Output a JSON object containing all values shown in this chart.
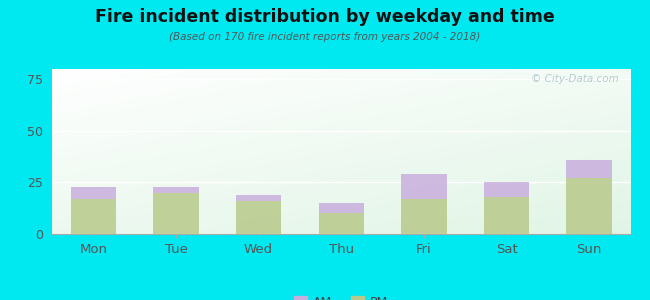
{
  "categories": [
    "Mon",
    "Tue",
    "Wed",
    "Thu",
    "Fri",
    "Sat",
    "Sun"
  ],
  "pm_values": [
    17,
    20,
    16,
    10,
    17,
    18,
    27
  ],
  "am_values": [
    6,
    3,
    3,
    5,
    12,
    7,
    9
  ],
  "am_color": "#c9aedd",
  "pm_color": "#b8c98a",
  "title": "Fire incident distribution by weekday and time",
  "subtitle": "(Based on 170 fire incident reports from years 2004 - 2018)",
  "ylim": [
    0,
    80
  ],
  "yticks": [
    0,
    25,
    50,
    75
  ],
  "background_outer": "#00e8f0",
  "watermark": "© City-Data.com",
  "bar_width": 0.55
}
